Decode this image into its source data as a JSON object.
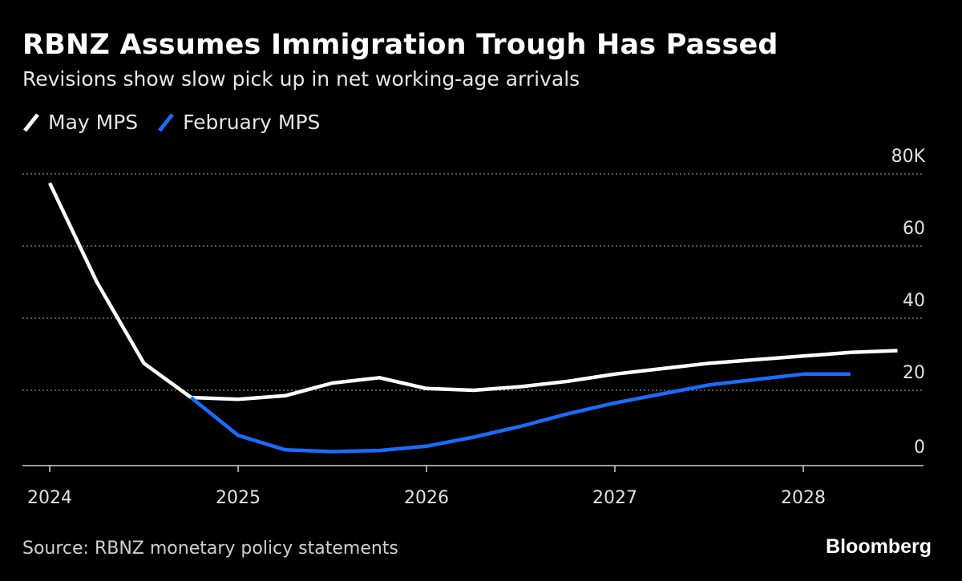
{
  "header": {
    "title": "RBNZ Assumes Immigration Trough Has Passed",
    "subtitle": "Revisions show slow pick up in net working-age arrivals"
  },
  "legend": [
    {
      "name": "May MPS",
      "color": "#ffffff",
      "icon": "slash-line-swatch"
    },
    {
      "name": "February MPS",
      "color": "#1a6cff",
      "icon": "slash-line-swatch"
    }
  ],
  "footer": {
    "source": "Source: RBNZ monetary policy statements",
    "brand": "Bloomberg"
  },
  "chart_data": {
    "type": "line",
    "title": "RBNZ Assumes Immigration Trough Has Passed",
    "subtitle": "Revisions show slow pick up in net working-age arrivals",
    "xlabel": "",
    "ylabel": "",
    "xlim": [
      2024.0,
      2028.5
    ],
    "ylim": [
      0,
      80
    ],
    "x_ticks": [
      {
        "value": 2024,
        "label": "2024"
      },
      {
        "value": 2025,
        "label": "2025"
      },
      {
        "value": 2026,
        "label": "2026"
      },
      {
        "value": 2027,
        "label": "2027"
      },
      {
        "value": 2028,
        "label": "2028"
      }
    ],
    "y_ticks": [
      {
        "value": 80,
        "label": "80K"
      },
      {
        "value": 60,
        "label": "60"
      },
      {
        "value": 40,
        "label": "40"
      },
      {
        "value": 20,
        "label": "20"
      },
      {
        "value": 0,
        "label": "0"
      }
    ],
    "grid": "horizontal-dotted",
    "legend_position": "top-left",
    "series": [
      {
        "name": "May MPS",
        "color": "#ffffff",
        "x": [
          2024.0,
          2024.25,
          2024.5,
          2024.75,
          2025.0,
          2025.25,
          2025.5,
          2025.75,
          2026.0,
          2026.25,
          2026.5,
          2026.75,
          2027.0,
          2027.25,
          2027.5,
          2027.75,
          2028.0,
          2028.25,
          2028.5
        ],
        "values": [
          77.5,
          50.0,
          27.5,
          18.0,
          17.5,
          18.5,
          22.0,
          23.5,
          20.5,
          20.0,
          21.0,
          22.5,
          24.5,
          26.0,
          27.5,
          28.5,
          29.5,
          30.5,
          31.0
        ]
      },
      {
        "name": "February MPS",
        "color": "#1a6cff",
        "x": [
          2024.75,
          2025.0,
          2025.25,
          2025.5,
          2025.75,
          2026.0,
          2026.25,
          2026.5,
          2026.75,
          2027.0,
          2027.25,
          2027.5,
          2027.75,
          2028.0,
          2028.25
        ],
        "values": [
          18.0,
          7.5,
          3.5,
          3.0,
          3.3,
          4.5,
          7.0,
          10.0,
          13.5,
          16.5,
          19.0,
          21.5,
          23.0,
          24.5,
          24.5
        ]
      }
    ]
  }
}
